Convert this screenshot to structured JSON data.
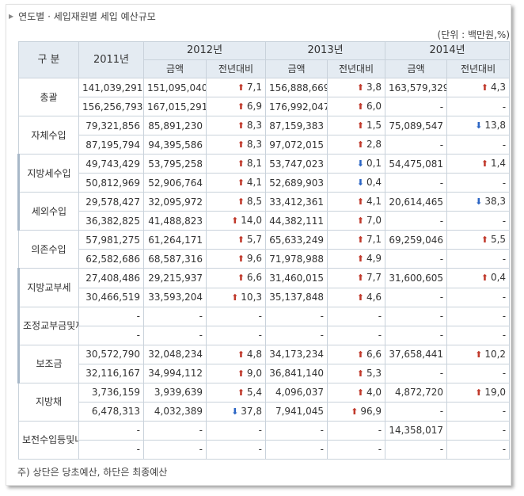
{
  "title": "연도별 · 세입재원별 세입 예산규모",
  "unit": "(단위 : 백만원,%)",
  "headers": {
    "category": "구 분",
    "y2011": "2011년",
    "y2012": "2012년",
    "y2013": "2013년",
    "y2014": "2014년",
    "amount": "금액",
    "yoy": "전년대비"
  },
  "rows": [
    {
      "label": "총괄",
      "level": 0,
      "group": 0,
      "lines": [
        {
          "y2011": "141,039,291",
          "y2012": "151,095,040",
          "c2012": "7,1",
          "d2012": "up",
          "y2013": "156,888,669",
          "c2013": "3,8",
          "d2013": "up",
          "y2014": "163,579,329",
          "c2014": "4,3",
          "d2014": "up"
        },
        {
          "y2011": "156,256,793",
          "y2012": "167,015,291",
          "c2012": "6,9",
          "d2012": "up",
          "y2013": "176,992,047",
          "c2013": "6,0",
          "d2013": "up",
          "y2014": "-",
          "c2014": "-",
          "d2014": ""
        }
      ]
    },
    {
      "label": "자체수입",
      "level": 0,
      "group": 1,
      "lines": [
        {
          "y2011": "79,321,856",
          "y2012": "85,891,230",
          "c2012": "8,3",
          "d2012": "up",
          "y2013": "87,159,383",
          "c2013": "1,5",
          "d2013": "up",
          "y2014": "75,089,547",
          "c2014": "13,8",
          "d2014": "down"
        },
        {
          "y2011": "87,195,794",
          "y2012": "94,395,586",
          "c2012": "8,3",
          "d2012": "up",
          "y2013": "97,072,015",
          "c2013": "2,8",
          "d2013": "up",
          "y2014": "-",
          "c2014": "-",
          "d2014": ""
        }
      ]
    },
    {
      "label": "지방세수입",
      "level": 1,
      "group": 1,
      "lines": [
        {
          "y2011": "49,743,429",
          "y2012": "53,795,258",
          "c2012": "8,1",
          "d2012": "up",
          "y2013": "53,747,023",
          "c2013": "0,1",
          "d2013": "down",
          "y2014": "54,475,081",
          "c2014": "1,4",
          "d2014": "up"
        },
        {
          "y2011": "50,812,969",
          "y2012": "52,906,764",
          "c2012": "4,1",
          "d2012": "up",
          "y2013": "52,689,903",
          "c2013": "0,4",
          "d2013": "down",
          "y2014": "-",
          "c2014": "-",
          "d2014": ""
        }
      ]
    },
    {
      "label": "세외수입",
      "level": 1,
      "group": 1,
      "lines": [
        {
          "y2011": "29,578,427",
          "y2012": "32,095,972",
          "c2012": "8,5",
          "d2012": "up",
          "y2013": "33,412,361",
          "c2013": "4,1",
          "d2013": "up",
          "y2014": "20,614,465",
          "c2014": "38,3",
          "d2014": "down"
        },
        {
          "y2011": "36,382,825",
          "y2012": "41,488,823",
          "c2012": "14,0",
          "d2012": "up",
          "y2013": "44,382,111",
          "c2013": "7,0",
          "d2013": "up",
          "y2014": "-",
          "c2014": "-",
          "d2014": ""
        }
      ]
    },
    {
      "label": "의존수입",
      "level": 0,
      "group": 2,
      "lines": [
        {
          "y2011": "57,981,275",
          "y2012": "61,264,171",
          "c2012": "5,7",
          "d2012": "up",
          "y2013": "65,633,249",
          "c2013": "7,1",
          "d2013": "up",
          "y2014": "69,259,046",
          "c2014": "5,5",
          "d2014": "up"
        },
        {
          "y2011": "62,582,686",
          "y2012": "68,587,316",
          "c2012": "9,6",
          "d2012": "up",
          "y2013": "71,978,988",
          "c2013": "4,9",
          "d2013": "up",
          "y2014": "-",
          "c2014": "-",
          "d2014": ""
        }
      ]
    },
    {
      "label": "지방교부세",
      "level": 1,
      "group": 2,
      "lines": [
        {
          "y2011": "27,408,486",
          "y2012": "29,215,937",
          "c2012": "6,6",
          "d2012": "up",
          "y2013": "31,460,015",
          "c2013": "7,7",
          "d2013": "up",
          "y2014": "31,600,605",
          "c2014": "0,4",
          "d2014": "up"
        },
        {
          "y2011": "30,466,519",
          "y2012": "33,593,204",
          "c2012": "10,3",
          "d2012": "up",
          "y2013": "35,137,848",
          "c2013": "4,6",
          "d2013": "up",
          "y2014": "-",
          "c2014": "-",
          "d2014": ""
        }
      ]
    },
    {
      "label": "조정교부금및재정보전금",
      "level": 1,
      "group": 2,
      "lines": [
        {
          "y2011": "-",
          "y2012": "-",
          "c2012": "-",
          "d2012": "",
          "y2013": "-",
          "c2013": "-",
          "d2013": "",
          "y2014": "-",
          "c2014": "-",
          "d2014": ""
        },
        {
          "y2011": "-",
          "y2012": "-",
          "c2012": "-",
          "d2012": "",
          "y2013": "-",
          "c2013": "-",
          "d2013": "",
          "y2014": "-",
          "c2014": "-",
          "d2014": ""
        }
      ]
    },
    {
      "label": "보조금",
      "level": 1,
      "group": 2,
      "lines": [
        {
          "y2011": "30,572,790",
          "y2012": "32,048,234",
          "c2012": "4,8",
          "d2012": "up",
          "y2013": "34,173,234",
          "c2013": "6,6",
          "d2013": "up",
          "y2014": "37,658,441",
          "c2014": "10,2",
          "d2014": "up"
        },
        {
          "y2011": "32,116,167",
          "y2012": "34,994,112",
          "c2012": "9,0",
          "d2012": "up",
          "y2013": "36,841,140",
          "c2013": "5,3",
          "d2013": "up",
          "y2014": "-",
          "c2014": "-",
          "d2014": ""
        }
      ]
    },
    {
      "label": "지방채",
      "level": 0,
      "group": 3,
      "lines": [
        {
          "y2011": "3,736,159",
          "y2012": "3,939,639",
          "c2012": "5,4",
          "d2012": "up",
          "y2013": "4,096,037",
          "c2013": "4,0",
          "d2013": "up",
          "y2014": "4,872,720",
          "c2014": "19,0",
          "d2014": "up"
        },
        {
          "y2011": "6,478,313",
          "y2012": "4,032,389",
          "c2012": "37,8",
          "d2012": "down",
          "y2013": "7,941,045",
          "c2013": "96,9",
          "d2013": "up",
          "y2014": "-",
          "c2014": "-",
          "d2014": ""
        }
      ]
    },
    {
      "label": "보전수입등및내부거래",
      "level": 0,
      "group": 4,
      "lines": [
        {
          "y2011": "-",
          "y2012": "-",
          "c2012": "-",
          "d2012": "",
          "y2013": "-",
          "c2013": "-",
          "d2013": "",
          "y2014": "14,358,017",
          "c2014": "-",
          "d2014": ""
        },
        {
          "y2011": "-",
          "y2012": "-",
          "c2012": "-",
          "d2012": "",
          "y2013": "-",
          "c2013": "-",
          "d2013": "",
          "y2014": "-",
          "c2014": "-",
          "d2014": ""
        }
      ]
    }
  ],
  "note": "주) 상단은 당초예산, 하단은 최종예산",
  "colors": {
    "up": "#c0392b",
    "down": "#2b65c4",
    "header_bg": "#e4ebf2",
    "border": "#c9d2db"
  }
}
